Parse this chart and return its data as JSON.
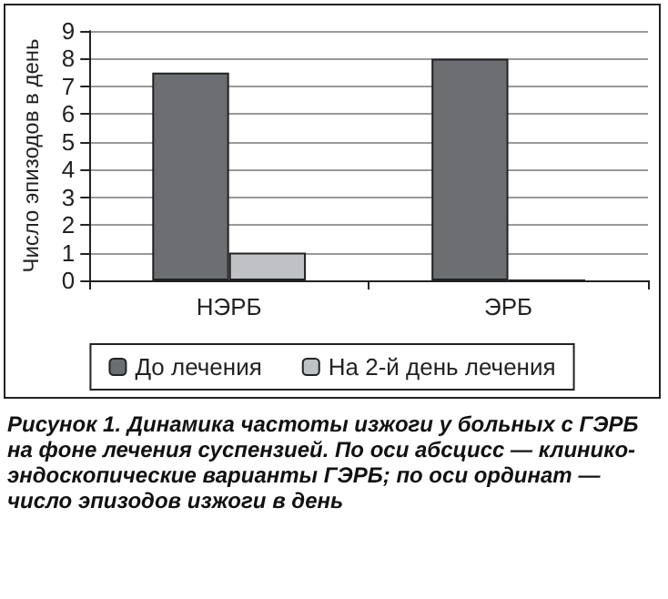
{
  "chart_data": {
    "type": "bar",
    "ylabel": "Число эпизодов в день",
    "categories": [
      "НЭРБ",
      "ЭРБ"
    ],
    "series": [
      {
        "name": "До лечения",
        "color": "#6d6e71",
        "values": [
          7.5,
          8
        ]
      },
      {
        "name": "На 2-й день лечения",
        "color": "#c0c1c4",
        "values": [
          1,
          0
        ]
      }
    ],
    "ylim": [
      0,
      9
    ],
    "yticks": [
      0,
      1,
      2,
      3,
      4,
      5,
      6,
      7,
      8,
      9
    ],
    "grid": "y",
    "legend": "bottom",
    "annotations": [
      "Рисунок 1. Динамика частоты изжоги у больных с ГЭРБ на фоне лечения суспензией. По оси абсцисс — клинико-эндоскопические варианты ГЭРБ; по оси ординат — число эпизодов изжоги в день"
    ]
  }
}
